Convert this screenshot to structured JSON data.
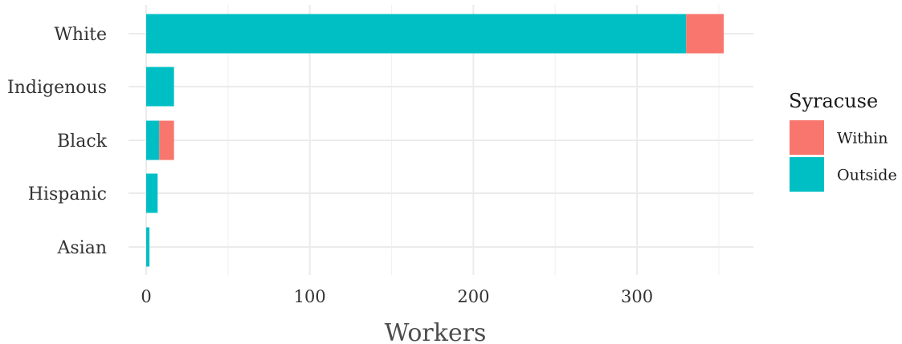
{
  "chart_data": {
    "type": "bar",
    "orientation": "horizontal",
    "stacked": true,
    "categories": [
      "White",
      "Indigenous",
      "Black",
      "Hispanic",
      "Asian"
    ],
    "series": [
      {
        "name": "Outside",
        "values": [
          330,
          17,
          8,
          7,
          2
        ],
        "color": "#00BFC4"
      },
      {
        "name": "Within",
        "values": [
          23,
          0,
          9,
          0,
          0
        ],
        "color": "#F8766D"
      }
    ],
    "title": "",
    "xlabel": "Workers",
    "ylabel": "",
    "xlim": [
      0,
      370
    ],
    "xticks": [
      0,
      100,
      200,
      300
    ],
    "grid": true,
    "legend": {
      "title": "Syracuse",
      "position": "right",
      "entries": [
        {
          "label": "Within",
          "color": "#F8766D"
        },
        {
          "label": "Outside",
          "color": "#00BFC4"
        }
      ]
    }
  }
}
